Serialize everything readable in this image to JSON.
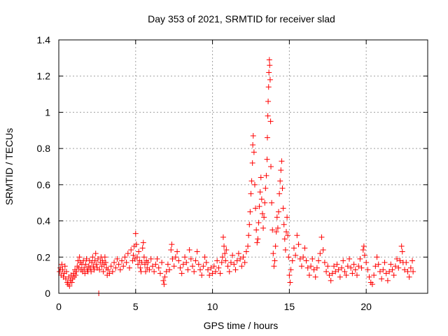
{
  "chart_data": {
    "type": "scatter",
    "title": "Day 353 of 2021, SRMTID for receiver slad",
    "xlabel": "GPS time / hours",
    "ylabel": "SRMTID / TECUs",
    "xlim": [
      0,
      24
    ],
    "ylim": [
      0,
      1.4
    ],
    "x_ticks": [
      0,
      5,
      10,
      15,
      20
    ],
    "x_tick_labels": [
      "0",
      "5",
      "10",
      "15",
      "20"
    ],
    "y_ticks": [
      0,
      0.2,
      0.4,
      0.6,
      0.8,
      1.0,
      1.2,
      1.4
    ],
    "y_tick_labels": [
      "0",
      "0.2",
      "0.4",
      "0.6",
      "0.8",
      "1",
      "1.2",
      "1.4"
    ],
    "grid": true,
    "marker": "plus",
    "color": "#ff0000",
    "series": [
      {
        "name": "SRMTID",
        "points": [
          [
            0.05,
            0.12
          ],
          [
            0.1,
            0.14
          ],
          [
            0.15,
            0.1
          ],
          [
            0.2,
            0.16
          ],
          [
            0.25,
            0.13
          ],
          [
            0.3,
            0.09
          ],
          [
            0.35,
            0.11
          ],
          [
            0.4,
            0.15
          ],
          [
            0.45,
            0.08
          ],
          [
            0.5,
            0.12
          ],
          [
            0.55,
            0.06
          ],
          [
            0.6,
            0.05
          ],
          [
            0.65,
            0.09
          ],
          [
            0.7,
            0.04
          ],
          [
            0.75,
            0.07
          ],
          [
            0.8,
            0.1
          ],
          [
            0.85,
            0.06
          ],
          [
            0.9,
            0.08
          ],
          [
            0.95,
            0.11
          ],
          [
            1.0,
            0.09
          ],
          [
            1.05,
            0.13
          ],
          [
            1.1,
            0.1
          ],
          [
            1.15,
            0.12
          ],
          [
            1.2,
            0.15
          ],
          [
            1.25,
            0.18
          ],
          [
            1.3,
            0.14
          ],
          [
            1.35,
            0.2
          ],
          [
            1.4,
            0.17
          ],
          [
            1.45,
            0.13
          ],
          [
            1.5,
            0.16
          ],
          [
            1.55,
            0.12
          ],
          [
            1.6,
            0.18
          ],
          [
            1.65,
            0.14
          ],
          [
            1.7,
            0.11
          ],
          [
            1.75,
            0.16
          ],
          [
            1.8,
            0.19
          ],
          [
            1.85,
            0.13
          ],
          [
            1.9,
            0.12
          ],
          [
            1.95,
            0.15
          ],
          [
            2.0,
            0.18
          ],
          [
            2.05,
            0.14
          ],
          [
            2.1,
            0.12
          ],
          [
            2.15,
            0.17
          ],
          [
            2.2,
            0.2
          ],
          [
            2.25,
            0.15
          ],
          [
            2.3,
            0.13
          ],
          [
            2.35,
            0.18
          ],
          [
            2.4,
            0.22
          ],
          [
            2.45,
            0.16
          ],
          [
            2.5,
            0.14
          ],
          [
            2.55,
            0.19
          ],
          [
            2.6,
            0.0
          ],
          [
            2.65,
            0.13
          ],
          [
            2.7,
            0.17
          ],
          [
            2.75,
            0.2
          ],
          [
            2.8,
            0.15
          ],
          [
            2.85,
            0.18
          ],
          [
            2.9,
            0.12
          ],
          [
            2.95,
            0.16
          ],
          [
            3.0,
            0.2
          ],
          [
            3.05,
            0.17
          ],
          [
            3.1,
            0.14
          ],
          [
            3.15,
            0.1
          ],
          [
            3.2,
            0.13
          ],
          [
            3.3,
            0.11
          ],
          [
            3.4,
            0.15
          ],
          [
            3.5,
            0.12
          ],
          [
            3.6,
            0.17
          ],
          [
            3.7,
            0.14
          ],
          [
            3.8,
            0.19
          ],
          [
            3.9,
            0.16
          ],
          [
            4.0,
            0.13
          ],
          [
            4.1,
            0.18
          ],
          [
            4.2,
            0.15
          ],
          [
            4.3,
            0.2
          ],
          [
            4.4,
            0.17
          ],
          [
            4.5,
            0.22
          ],
          [
            4.6,
            0.14
          ],
          [
            4.7,
            0.24
          ],
          [
            4.8,
            0.18
          ],
          [
            4.85,
            0.21
          ],
          [
            4.9,
            0.26
          ],
          [
            4.95,
            0.19
          ],
          [
            5.0,
            0.33
          ],
          [
            5.05,
            0.27
          ],
          [
            5.1,
            0.2
          ],
          [
            5.15,
            0.16
          ],
          [
            5.2,
            0.23
          ],
          [
            5.25,
            0.18
          ],
          [
            5.3,
            0.14
          ],
          [
            5.35,
            0.12
          ],
          [
            5.4,
            0.17
          ],
          [
            5.45,
            0.25
          ],
          [
            5.5,
            0.28
          ],
          [
            5.55,
            0.2
          ],
          [
            5.6,
            0.16
          ],
          [
            5.65,
            0.12
          ],
          [
            5.7,
            0.18
          ],
          [
            5.75,
            0.14
          ],
          [
            5.8,
            0.17
          ],
          [
            5.9,
            0.13
          ],
          [
            6.0,
            0.19
          ],
          [
            6.1,
            0.15
          ],
          [
            6.2,
            0.12
          ],
          [
            6.3,
            0.16
          ],
          [
            6.4,
            0.19
          ],
          [
            6.5,
            0.14
          ],
          [
            6.6,
            0.11
          ],
          [
            6.7,
            0.17
          ],
          [
            6.8,
            0.07
          ],
          [
            6.85,
            0.05
          ],
          [
            6.9,
            0.09
          ],
          [
            7.0,
            0.12
          ],
          [
            7.1,
            0.16
          ],
          [
            7.2,
            0.13
          ],
          [
            7.3,
            0.24
          ],
          [
            7.35,
            0.27
          ],
          [
            7.4,
            0.19
          ],
          [
            7.5,
            0.15
          ],
          [
            7.6,
            0.2
          ],
          [
            7.7,
            0.23
          ],
          [
            7.8,
            0.18
          ],
          [
            7.9,
            0.14
          ],
          [
            8.0,
            0.11
          ],
          [
            8.1,
            0.16
          ],
          [
            8.2,
            0.2
          ],
          [
            8.3,
            0.17
          ],
          [
            8.4,
            0.13
          ],
          [
            8.5,
            0.24
          ],
          [
            8.6,
            0.19
          ],
          [
            8.7,
            0.15
          ],
          [
            8.8,
            0.12
          ],
          [
            8.9,
            0.18
          ],
          [
            9.0,
            0.23
          ],
          [
            9.1,
            0.16
          ],
          [
            9.2,
            0.13
          ],
          [
            9.3,
            0.1
          ],
          [
            9.4,
            0.15
          ],
          [
            9.5,
            0.2
          ],
          [
            9.6,
            0.17
          ],
          [
            9.7,
            0.13
          ],
          [
            9.8,
            0.1
          ],
          [
            9.9,
            0.14
          ],
          [
            10.0,
            0.11
          ],
          [
            10.1,
            0.15
          ],
          [
            10.2,
            0.12
          ],
          [
            10.3,
            0.18
          ],
          [
            10.4,
            0.14
          ],
          [
            10.5,
            0.11
          ],
          [
            10.6,
            0.17
          ],
          [
            10.65,
            0.2
          ],
          [
            10.7,
            0.31
          ],
          [
            10.75,
            0.26
          ],
          [
            10.8,
            0.22
          ],
          [
            10.85,
            0.18
          ],
          [
            10.9,
            0.24
          ],
          [
            11.0,
            0.15
          ],
          [
            11.1,
            0.12
          ],
          [
            11.2,
            0.17
          ],
          [
            11.3,
            0.21
          ],
          [
            11.4,
            0.16
          ],
          [
            11.5,
            0.13
          ],
          [
            11.6,
            0.18
          ],
          [
            11.7,
            0.22
          ],
          [
            11.8,
            0.19
          ],
          [
            11.9,
            0.15
          ],
          [
            12.0,
            0.2
          ],
          [
            12.1,
            0.17
          ],
          [
            12.2,
            0.23
          ],
          [
            12.3,
            0.26
          ],
          [
            12.35,
            0.32
          ],
          [
            12.4,
            0.38
          ],
          [
            12.45,
            0.45
          ],
          [
            12.5,
            0.55
          ],
          [
            12.55,
            0.62
          ],
          [
            12.6,
            0.72
          ],
          [
            12.62,
            0.82
          ],
          [
            12.65,
            0.87
          ],
          [
            12.7,
            0.78
          ],
          [
            12.75,
            0.6
          ],
          [
            12.8,
            0.47
          ],
          [
            12.85,
            0.35
          ],
          [
            12.9,
            0.28
          ],
          [
            12.95,
            0.3
          ],
          [
            13.0,
            0.39
          ],
          [
            13.05,
            0.48
          ],
          [
            13.1,
            0.56
          ],
          [
            13.15,
            0.64
          ],
          [
            13.2,
            0.52
          ],
          [
            13.25,
            0.44
          ],
          [
            13.3,
            0.36
          ],
          [
            13.35,
            0.42
          ],
          [
            13.4,
            0.5
          ],
          [
            13.45,
            0.58
          ],
          [
            13.5,
            0.65
          ],
          [
            13.55,
            0.74
          ],
          [
            13.57,
            0.86
          ],
          [
            13.6,
            0.98
          ],
          [
            13.62,
            1.06
          ],
          [
            13.65,
            1.14
          ],
          [
            13.67,
            1.22
          ],
          [
            13.7,
            1.29
          ],
          [
            13.72,
            1.26
          ],
          [
            13.75,
            1.18
          ],
          [
            13.78,
            0.95
          ],
          [
            13.8,
            0.7
          ],
          [
            13.85,
            0.5
          ],
          [
            13.9,
            0.35
          ],
          [
            13.95,
            0.22
          ],
          [
            14.0,
            0.15
          ],
          [
            14.05,
            0.18
          ],
          [
            14.1,
            0.26
          ],
          [
            14.15,
            0.34
          ],
          [
            14.2,
            0.42
          ],
          [
            14.25,
            0.36
          ],
          [
            14.3,
            0.45
          ],
          [
            14.35,
            0.55
          ],
          [
            14.4,
            0.62
          ],
          [
            14.45,
            0.68
          ],
          [
            14.5,
            0.73
          ],
          [
            14.55,
            0.58
          ],
          [
            14.6,
            0.47
          ],
          [
            14.65,
            0.38
          ],
          [
            14.7,
            0.3
          ],
          [
            14.75,
            0.24
          ],
          [
            14.8,
            0.34
          ],
          [
            14.85,
            0.42
          ],
          [
            14.9,
            0.32
          ],
          [
            14.95,
            0.2
          ],
          [
            15.0,
            0.1
          ],
          [
            15.05,
            0.06
          ],
          [
            15.1,
            0.13
          ],
          [
            15.2,
            0.18
          ],
          [
            15.3,
            0.25
          ],
          [
            15.4,
            0.21
          ],
          [
            15.5,
            0.32
          ],
          [
            15.6,
            0.27
          ],
          [
            15.7,
            0.19
          ],
          [
            15.8,
            0.15
          ],
          [
            15.9,
            0.2
          ],
          [
            16.0,
            0.25
          ],
          [
            16.1,
            0.18
          ],
          [
            16.2,
            0.14
          ],
          [
            16.3,
            0.1
          ],
          [
            16.4,
            0.15
          ],
          [
            16.5,
            0.19
          ],
          [
            16.6,
            0.13
          ],
          [
            16.7,
            0.09
          ],
          [
            16.8,
            0.14
          ],
          [
            16.9,
            0.18
          ],
          [
            17.0,
            0.22
          ],
          [
            17.1,
            0.31
          ],
          [
            17.2,
            0.24
          ],
          [
            17.3,
            0.17
          ],
          [
            17.4,
            0.12
          ],
          [
            17.5,
            0.15
          ],
          [
            17.6,
            0.1
          ],
          [
            17.7,
            0.07
          ],
          [
            17.8,
            0.11
          ],
          [
            17.9,
            0.15
          ],
          [
            18.0,
            0.12
          ],
          [
            18.1,
            0.16
          ],
          [
            18.2,
            0.13
          ],
          [
            18.3,
            0.09
          ],
          [
            18.4,
            0.14
          ],
          [
            18.5,
            0.18
          ],
          [
            18.6,
            0.12
          ],
          [
            18.7,
            0.1
          ],
          [
            18.8,
            0.15
          ],
          [
            18.9,
            0.19
          ],
          [
            19.0,
            0.14
          ],
          [
            19.1,
            0.11
          ],
          [
            19.2,
            0.16
          ],
          [
            19.3,
            0.13
          ],
          [
            19.4,
            0.1
          ],
          [
            19.5,
            0.15
          ],
          [
            19.6,
            0.19
          ],
          [
            19.7,
            0.14
          ],
          [
            19.8,
            0.24
          ],
          [
            19.85,
            0.26
          ],
          [
            19.9,
            0.21
          ],
          [
            20.0,
            0.17
          ],
          [
            20.1,
            0.13
          ],
          [
            20.2,
            0.09
          ],
          [
            20.3,
            0.06
          ],
          [
            20.4,
            0.05
          ],
          [
            20.5,
            0.1
          ],
          [
            20.6,
            0.15
          ],
          [
            20.7,
            0.2
          ],
          [
            20.8,
            0.16
          ],
          [
            20.9,
            0.12
          ],
          [
            21.0,
            0.08
          ],
          [
            21.1,
            0.13
          ],
          [
            21.2,
            0.17
          ],
          [
            21.3,
            0.11
          ],
          [
            21.4,
            0.07
          ],
          [
            21.5,
            0.12
          ],
          [
            21.6,
            0.16
          ],
          [
            21.7,
            0.13
          ],
          [
            21.8,
            0.1
          ],
          [
            21.9,
            0.15
          ],
          [
            22.0,
            0.19
          ],
          [
            22.1,
            0.14
          ],
          [
            22.2,
            0.18
          ],
          [
            22.3,
            0.26
          ],
          [
            22.35,
            0.23
          ],
          [
            22.4,
            0.17
          ],
          [
            22.5,
            0.13
          ],
          [
            22.6,
            0.17
          ],
          [
            22.7,
            0.12
          ],
          [
            22.8,
            0.09
          ],
          [
            22.9,
            0.14
          ],
          [
            23.0,
            0.18
          ],
          [
            23.05,
            0.12
          ]
        ]
      }
    ]
  }
}
